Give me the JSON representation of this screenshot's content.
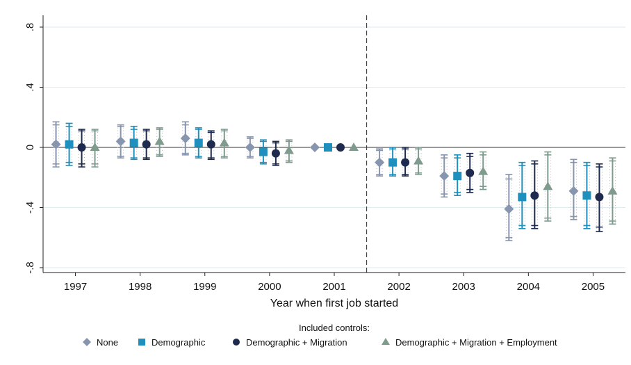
{
  "chart_data": {
    "type": "scatter",
    "title": "",
    "xlabel": "Year when first job started",
    "ylabel": "",
    "categories": [
      "1997",
      "1998",
      "1999",
      "2000",
      "2001",
      "2002",
      "2003",
      "2004",
      "2005"
    ],
    "ylim": [
      -0.85,
      0.9
    ],
    "yticks": [
      0.8,
      0.4,
      0,
      -0.4,
      -0.8
    ],
    "ytick_labels": [
      ".8",
      ".4",
      "0",
      "-.4",
      "-.8"
    ],
    "reference_line_after": "2001",
    "grid": "horizontal",
    "legend_title": "Included controls:",
    "legend_position": "bottom",
    "series": [
      {
        "name": "None",
        "marker": "diamond",
        "color": "#8796ae",
        "values": [
          0.02,
          0.04,
          0.06,
          0.0,
          0.0,
          -0.1,
          -0.19,
          -0.41,
          -0.29
        ],
        "ci_outer": [
          [
            -0.13,
            0.17
          ],
          [
            -0.07,
            0.15
          ],
          [
            -0.05,
            0.17
          ],
          [
            -0.07,
            0.07
          ],
          [
            0,
            0
          ],
          [
            -0.19,
            -0.01
          ],
          [
            -0.33,
            -0.05
          ],
          [
            -0.62,
            -0.18
          ],
          [
            -0.48,
            -0.08
          ]
        ],
        "ci_inner": [
          [
            -0.11,
            0.15
          ],
          [
            -0.06,
            0.14
          ],
          [
            -0.04,
            0.15
          ],
          [
            -0.06,
            0.06
          ],
          [
            0,
            0
          ],
          [
            -0.18,
            -0.02
          ],
          [
            -0.31,
            -0.07
          ],
          [
            -0.6,
            -0.21
          ],
          [
            -0.46,
            -0.1
          ]
        ]
      },
      {
        "name": "Demographic",
        "marker": "square",
        "color": "#1f8fbd",
        "values": [
          0.02,
          0.03,
          0.03,
          -0.03,
          0.0,
          -0.1,
          -0.19,
          -0.33,
          -0.32
        ],
        "ci_outer": [
          [
            -0.12,
            0.16
          ],
          [
            -0.08,
            0.14
          ],
          [
            -0.07,
            0.13
          ],
          [
            -0.11,
            0.05
          ],
          [
            0,
            0
          ],
          [
            -0.19,
            -0.0
          ],
          [
            -0.32,
            -0.05
          ],
          [
            -0.54,
            -0.1
          ],
          [
            -0.54,
            -0.1
          ]
        ],
        "ci_inner": [
          [
            -0.1,
            0.14
          ],
          [
            -0.07,
            0.12
          ],
          [
            -0.06,
            0.12
          ],
          [
            -0.1,
            0.04
          ],
          [
            0,
            0
          ],
          [
            -0.18,
            -0.01
          ],
          [
            -0.3,
            -0.07
          ],
          [
            -0.52,
            -0.12
          ],
          [
            -0.52,
            -0.12
          ]
        ]
      },
      {
        "name": "Demographic + Migration",
        "marker": "circle",
        "color": "#1e2a4e",
        "values": [
          0.0,
          0.02,
          0.02,
          -0.04,
          0.0,
          -0.1,
          -0.17,
          -0.32,
          -0.33
        ],
        "ci_outer": [
          [
            -0.13,
            0.12
          ],
          [
            -0.08,
            0.12
          ],
          [
            -0.08,
            0.11
          ],
          [
            -0.12,
            0.04
          ],
          [
            0,
            0
          ],
          [
            -0.19,
            -0.0
          ],
          [
            -0.3,
            -0.04
          ],
          [
            -0.54,
            -0.09
          ],
          [
            -0.56,
            -0.11
          ]
        ],
        "ci_inner": [
          [
            -0.11,
            0.11
          ],
          [
            -0.07,
            0.11
          ],
          [
            -0.07,
            0.1
          ],
          [
            -0.11,
            0.03
          ],
          [
            0,
            0
          ],
          [
            -0.18,
            -0.01
          ],
          [
            -0.28,
            -0.06
          ],
          [
            -0.52,
            -0.11
          ],
          [
            -0.53,
            -0.13
          ]
        ]
      },
      {
        "name": "Demographic + Migration + Employment",
        "marker": "triangle",
        "color": "#7e9b8e",
        "values": [
          0.0,
          0.04,
          0.03,
          -0.02,
          0.0,
          -0.09,
          -0.16,
          -0.26,
          -0.29
        ],
        "ci_outer": [
          [
            -0.13,
            0.12
          ],
          [
            -0.06,
            0.13
          ],
          [
            -0.07,
            0.12
          ],
          [
            -0.1,
            0.05
          ],
          [
            0,
            0
          ],
          [
            -0.18,
            -0.0
          ],
          [
            -0.28,
            -0.03
          ],
          [
            -0.49,
            -0.03
          ],
          [
            -0.51,
            -0.07
          ]
        ],
        "ci_inner": [
          [
            -0.11,
            0.11
          ],
          [
            -0.05,
            0.12
          ],
          [
            -0.06,
            0.11
          ],
          [
            -0.09,
            0.04
          ],
          [
            0,
            0
          ],
          [
            -0.17,
            -0.01
          ],
          [
            -0.26,
            -0.05
          ],
          [
            -0.47,
            -0.05
          ],
          [
            -0.49,
            -0.09
          ]
        ]
      }
    ]
  }
}
